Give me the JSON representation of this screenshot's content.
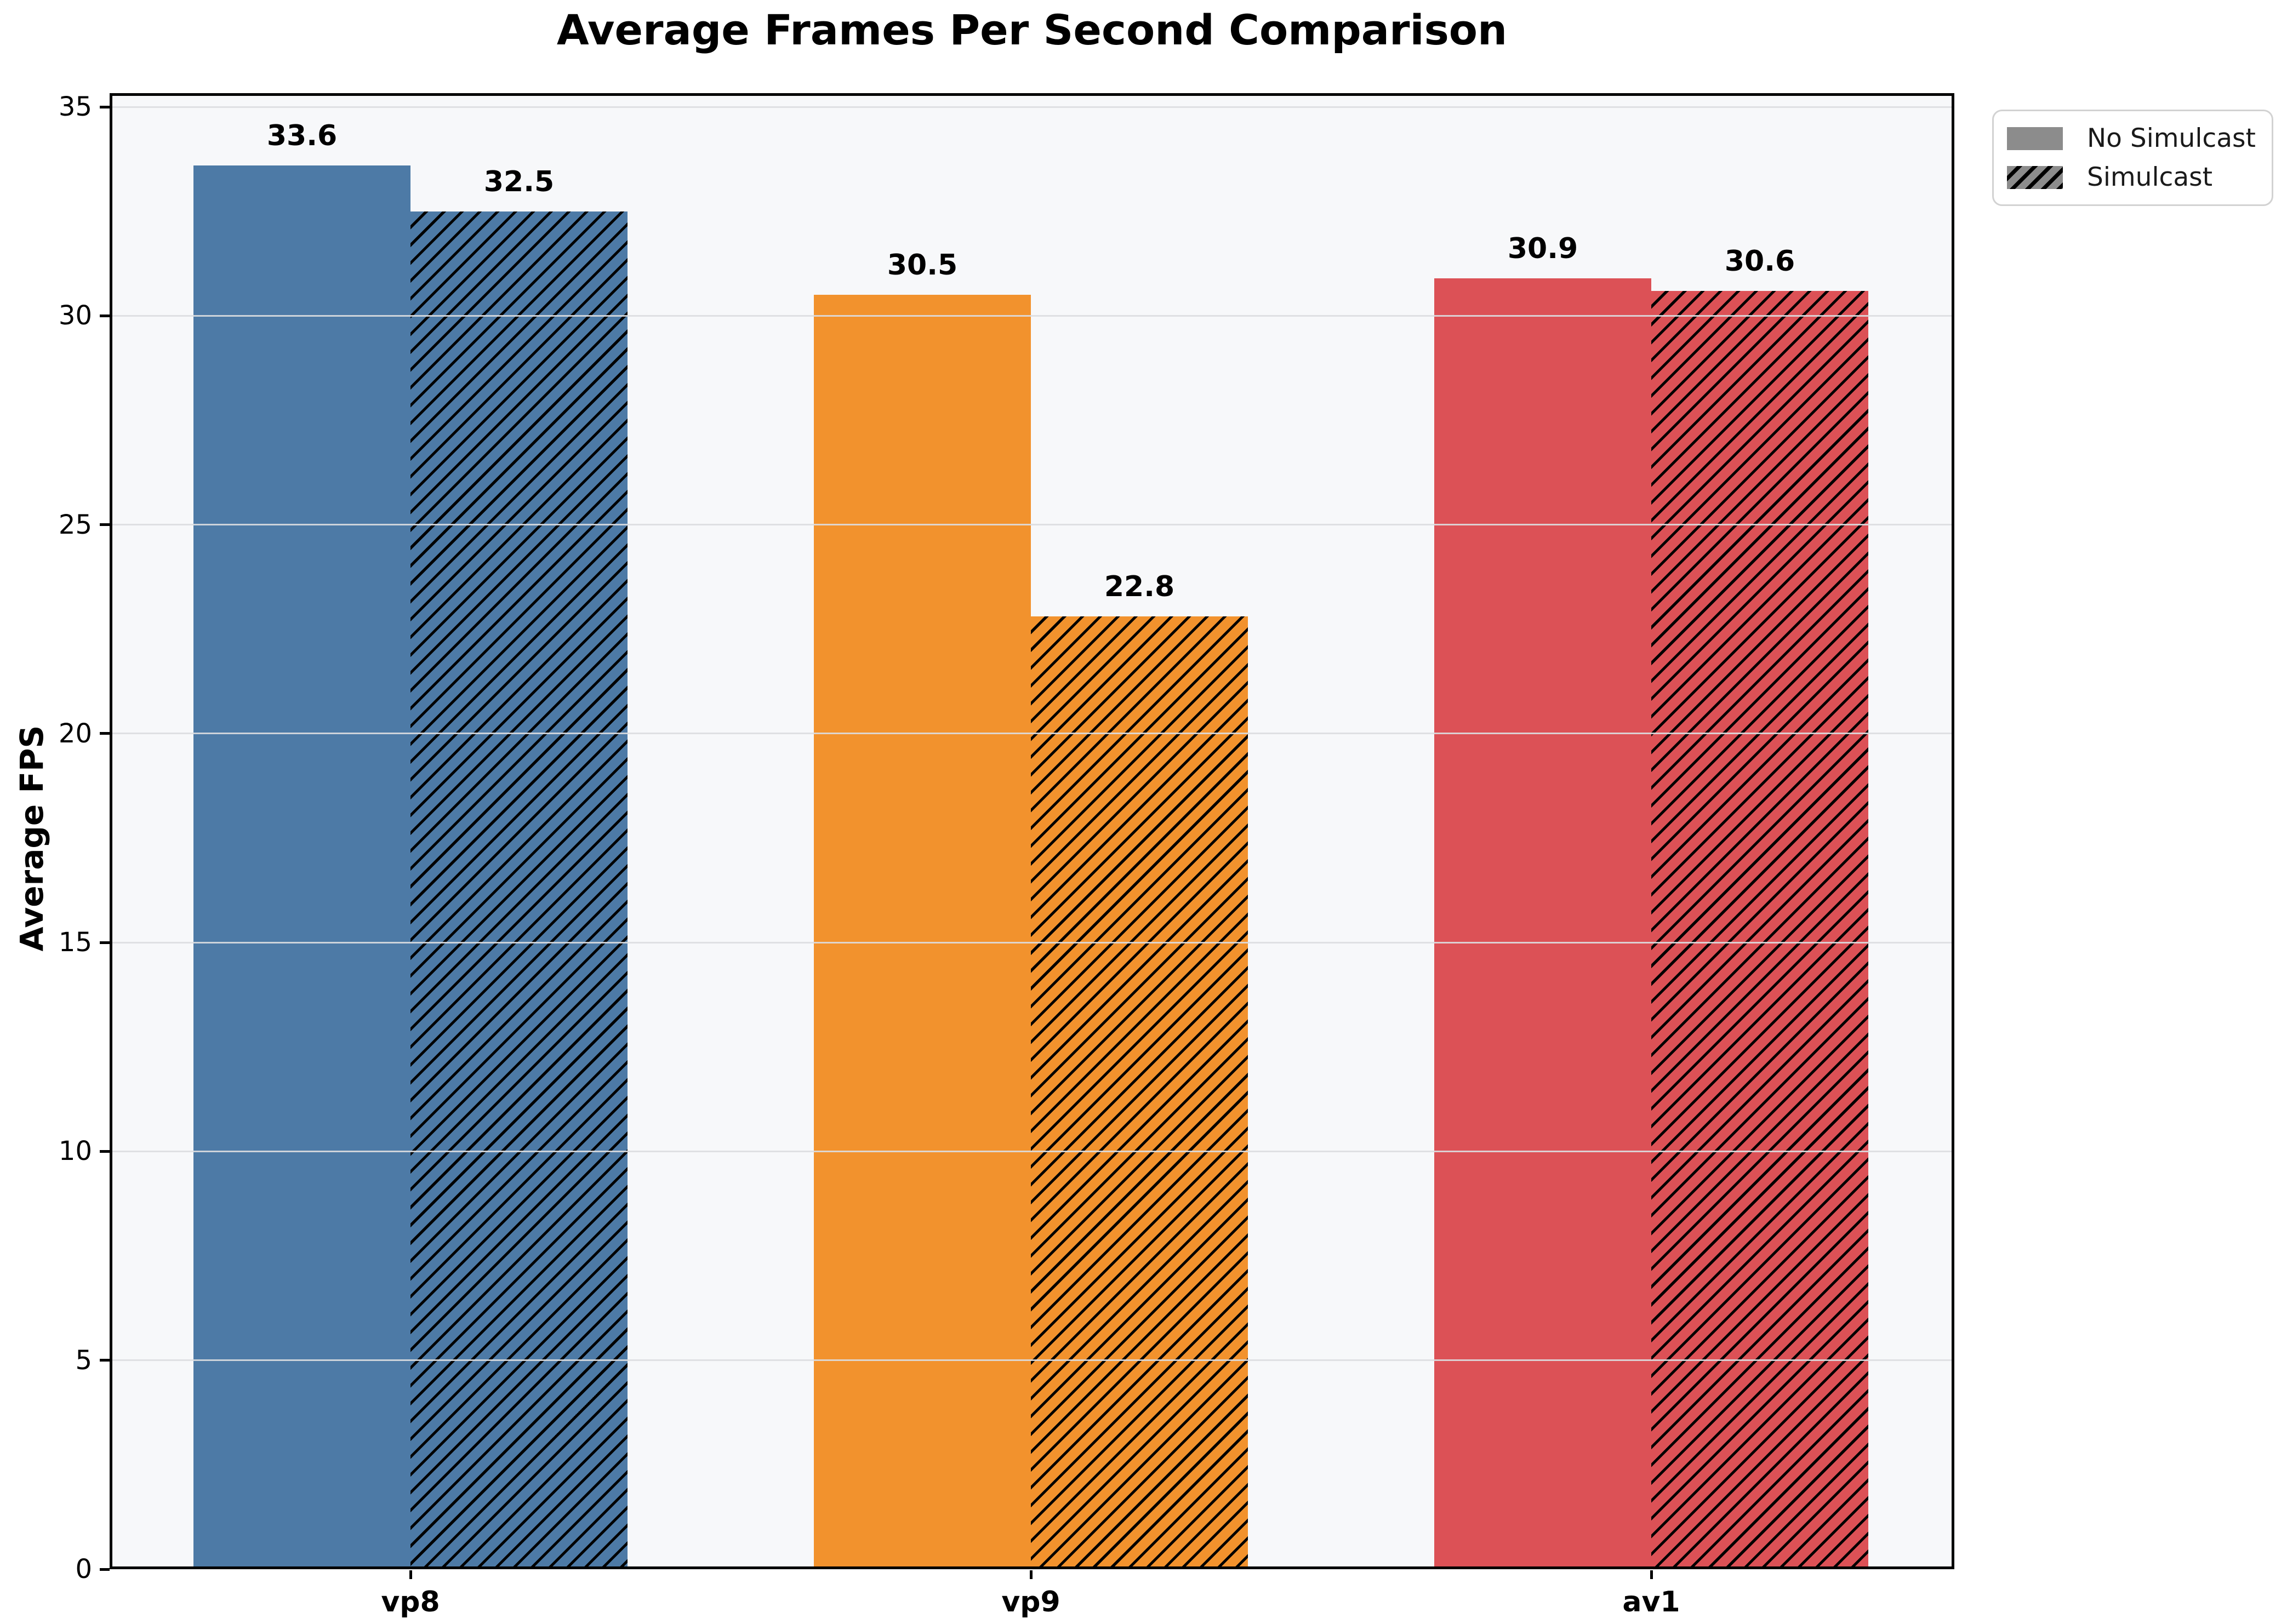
{
  "chart_data": {
    "type": "bar",
    "title": "Average Frames Per Second Comparison",
    "xlabel": "",
    "ylabel": "Average FPS",
    "categories": [
      "vp8",
      "vp9",
      "av1"
    ],
    "series": [
      {
        "name": "No Simulcast",
        "hatch": false,
        "values": [
          33.6,
          30.5,
          30.9
        ]
      },
      {
        "name": "Simulcast",
        "hatch": true,
        "values": [
          32.5,
          22.8,
          30.6
        ]
      }
    ],
    "bar_colors": [
      "#4d7aa6",
      "#f2922d",
      "#dc5156"
    ],
    "value_label_format": "one-decimal",
    "y_ticks": [
      0,
      5,
      10,
      15,
      20,
      25,
      30,
      35
    ],
    "ylim": [
      0,
      35
    ],
    "grid": true,
    "legend": {
      "position": "upper-right-outside",
      "swatch_color": "#8c8c8c",
      "items": [
        {
          "label": "No Simulcast",
          "swatch": "solid-gray"
        },
        {
          "label": "Simulcast",
          "swatch": "hatched-gray"
        }
      ]
    }
  }
}
